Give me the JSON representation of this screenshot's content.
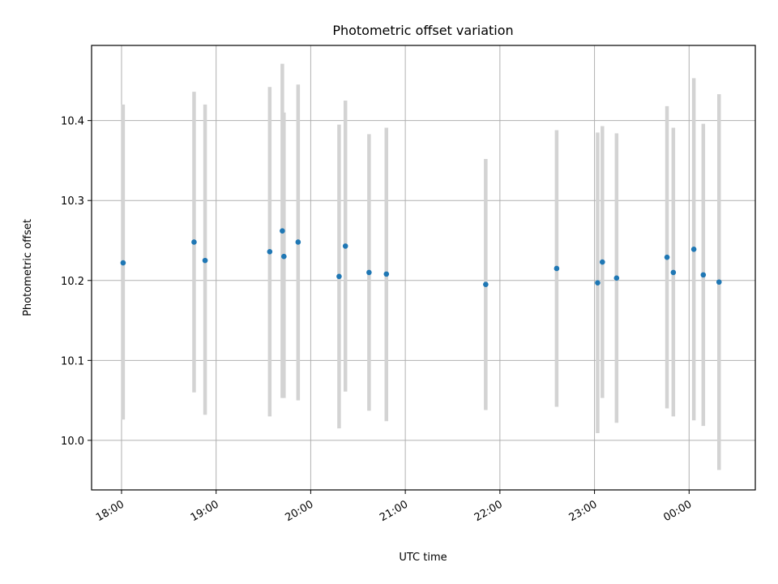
{
  "chart_data": {
    "type": "scatter",
    "title": "Photometric offset variation",
    "xlabel": "UTC time",
    "ylabel": "Photometric offset",
    "x_type": "time",
    "xlim": [
      "17:41",
      "00:42"
    ],
    "ylim": [
      9.938,
      10.494
    ],
    "x_ticks": [
      "18:00",
      "19:00",
      "20:00",
      "21:00",
      "22:00",
      "23:00",
      "00:00"
    ],
    "y_ticks": [
      "10.0",
      "10.1",
      "10.2",
      "10.3",
      "10.4"
    ],
    "grid": true,
    "marker_color": "#1f77b4",
    "errorbar_color": "#d3d3d3",
    "series": [
      {
        "points": [
          {
            "x": "18:01",
            "y": 10.222,
            "ylow": 10.026,
            "yhigh": 10.42
          },
          {
            "x": "18:46",
            "y": 10.248,
            "ylow": 10.06,
            "yhigh": 10.436
          },
          {
            "x": "18:53",
            "y": 10.225,
            "ylow": 10.032,
            "yhigh": 10.42
          },
          {
            "x": "19:34",
            "y": 10.236,
            "ylow": 10.03,
            "yhigh": 10.442
          },
          {
            "x": "19:42",
            "y": 10.262,
            "ylow": 10.053,
            "yhigh": 10.471
          },
          {
            "x": "19:43",
            "y": 10.23,
            "ylow": 10.053,
            "yhigh": 10.41
          },
          {
            "x": "19:52",
            "y": 10.248,
            "ylow": 10.05,
            "yhigh": 10.445
          },
          {
            "x": "20:18",
            "y": 10.205,
            "ylow": 10.015,
            "yhigh": 10.395
          },
          {
            "x": "20:22",
            "y": 10.243,
            "ylow": 10.061,
            "yhigh": 10.425
          },
          {
            "x": "20:37",
            "y": 10.21,
            "ylow": 10.037,
            "yhigh": 10.383
          },
          {
            "x": "20:48",
            "y": 10.208,
            "ylow": 10.024,
            "yhigh": 10.391
          },
          {
            "x": "21:51",
            "y": 10.195,
            "ylow": 10.038,
            "yhigh": 10.352
          },
          {
            "x": "22:36",
            "y": 10.215,
            "ylow": 10.042,
            "yhigh": 10.388
          },
          {
            "x": "23:02",
            "y": 10.197,
            "ylow": 10.009,
            "yhigh": 10.385
          },
          {
            "x": "23:05",
            "y": 10.223,
            "ylow": 10.053,
            "yhigh": 10.393
          },
          {
            "x": "23:14",
            "y": 10.203,
            "ylow": 10.022,
            "yhigh": 10.384
          },
          {
            "x": "23:46",
            "y": 10.229,
            "ylow": 10.04,
            "yhigh": 10.418
          },
          {
            "x": "23:50",
            "y": 10.21,
            "ylow": 10.03,
            "yhigh": 10.391
          },
          {
            "x": "00:03",
            "y": 10.239,
            "ylow": 10.025,
            "yhigh": 10.453
          },
          {
            "x": "00:09",
            "y": 10.207,
            "ylow": 10.018,
            "yhigh": 10.396
          },
          {
            "x": "00:19",
            "y": 10.198,
            "ylow": 9.963,
            "yhigh": 10.433
          }
        ]
      }
    ]
  }
}
